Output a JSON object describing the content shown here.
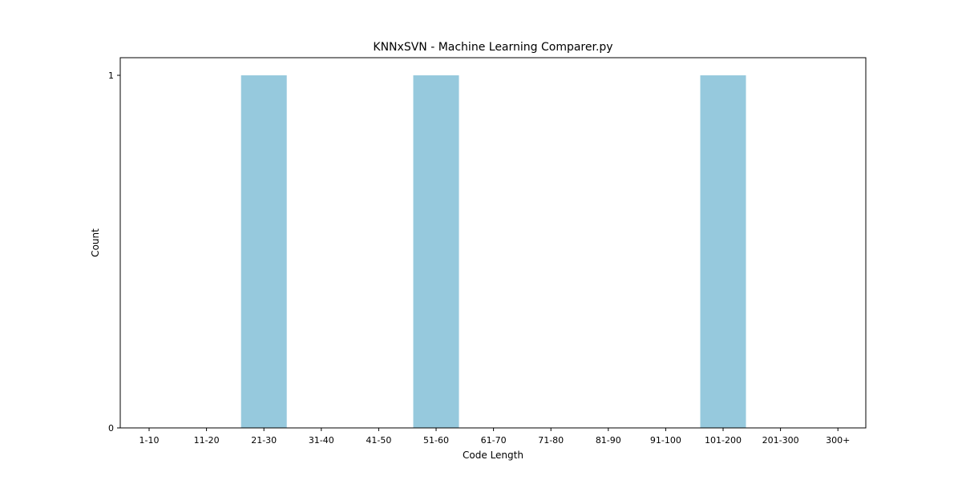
{
  "chart_data": {
    "type": "bar",
    "title": "KNNxSVN - Machine Learning Comparer.py",
    "xlabel": "Code Length",
    "ylabel": "Count",
    "categories": [
      "1-10",
      "11-20",
      "21-30",
      "31-40",
      "41-50",
      "51-60",
      "61-70",
      "71-80",
      "81-90",
      "91-100",
      "101-200",
      "201-300",
      "300+"
    ],
    "values": [
      0,
      0,
      1,
      0,
      0,
      1,
      0,
      0,
      0,
      0,
      1,
      0,
      0
    ],
    "ylim": [
      0,
      1
    ],
    "yticks": [
      "0",
      "1"
    ],
    "grid": false,
    "legend": "none",
    "bar_color": "#96c9dd"
  }
}
